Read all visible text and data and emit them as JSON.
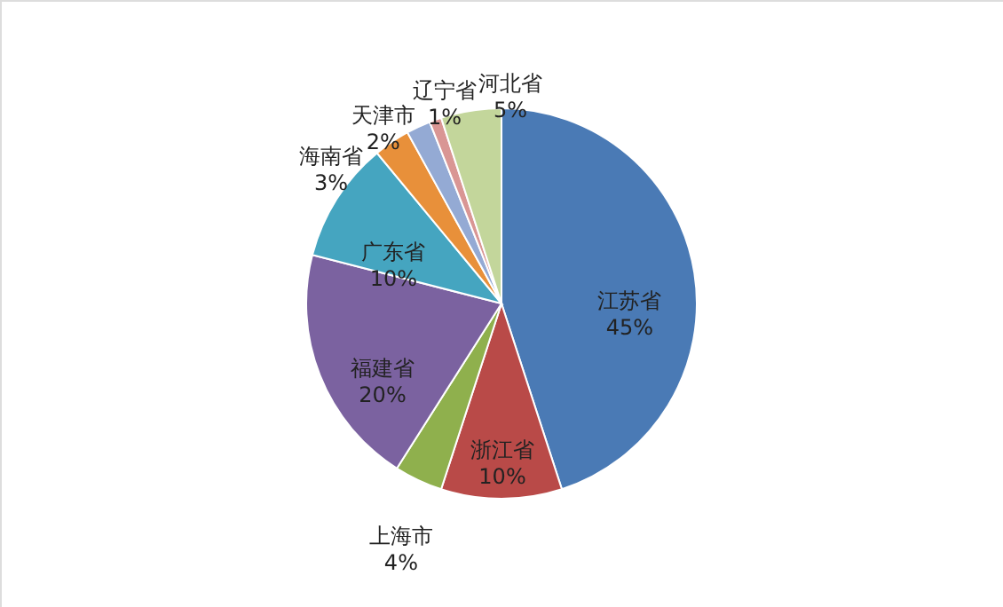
{
  "chart_data": {
    "type": "pie",
    "categories": [
      "江苏省",
      "浙江省",
      "上海市",
      "福建省",
      "广东省",
      "海南省",
      "天津市",
      "辽宁省",
      "河北省"
    ],
    "values": [
      45,
      10,
      4,
      20,
      10,
      3,
      2,
      1,
      5
    ],
    "value_labels": [
      "45%",
      "10%",
      "4%",
      "20%",
      "10%",
      "3%",
      "2%",
      "1%",
      "5%"
    ],
    "colors": [
      "#4a7ab5",
      "#b94a48",
      "#8fb04d",
      "#7b62a0",
      "#45a5c0",
      "#e8903a",
      "#94aad4",
      "#d99694",
      "#c3d69b"
    ]
  }
}
